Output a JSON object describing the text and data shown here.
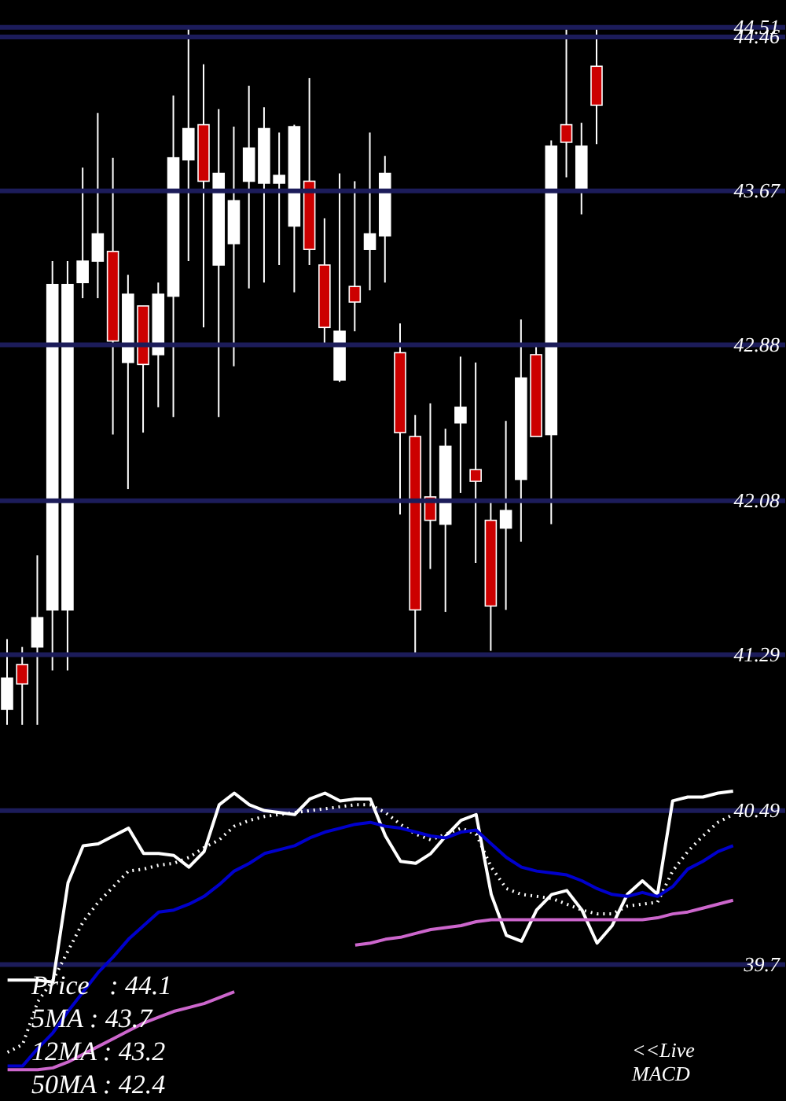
{
  "chart_data": {
    "type": "candlestick",
    "categories": [
      null,
      null,
      null,
      null,
      null,
      null,
      null,
      null,
      null,
      null,
      null,
      null,
      null,
      null,
      null,
      null,
      null,
      null,
      null,
      null,
      null,
      null,
      null,
      null,
      null,
      null,
      null,
      null,
      null,
      null,
      null,
      null,
      null,
      null,
      null,
      null,
      null,
      null,
      null,
      null,
      null,
      null,
      null,
      null,
      null,
      null,
      null,
      null,
      null
    ],
    "ohlc": [
      [
        41.01,
        41.37,
        40.93,
        41.17
      ],
      [
        41.24,
        41.33,
        40.93,
        41.14
      ],
      [
        41.33,
        41.8,
        40.93,
        41.48
      ],
      [
        41.52,
        43.31,
        41.21,
        43.19
      ],
      [
        41.52,
        43.31,
        41.21,
        43.19
      ],
      [
        43.2,
        43.79,
        43.12,
        43.31
      ],
      [
        43.31,
        44.07,
        43.12,
        43.45
      ],
      [
        43.36,
        43.84,
        42.42,
        42.9
      ],
      [
        42.79,
        43.24,
        42.14,
        43.14
      ],
      [
        43.08,
        43.08,
        42.43,
        42.78
      ],
      [
        42.83,
        43.2,
        42.56,
        43.14
      ],
      [
        43.13,
        44.16,
        42.51,
        43.84
      ],
      [
        43.83,
        44.51,
        43.31,
        43.99
      ],
      [
        44.01,
        44.32,
        42.97,
        43.72
      ],
      [
        43.29,
        44.09,
        42.51,
        43.76
      ],
      [
        43.4,
        44.0,
        42.77,
        43.62
      ],
      [
        43.72,
        44.21,
        43.17,
        43.89
      ],
      [
        43.71,
        44.1,
        43.2,
        43.99
      ],
      [
        43.71,
        43.97,
        43.29,
        43.75
      ],
      [
        43.49,
        44.01,
        43.15,
        44.0
      ],
      [
        43.72,
        44.25,
        43.29,
        43.37
      ],
      [
        43.29,
        43.53,
        42.89,
        42.97
      ],
      [
        42.7,
        43.76,
        42.69,
        42.95
      ],
      [
        43.18,
        43.72,
        42.95,
        43.1
      ],
      [
        43.37,
        43.97,
        43.16,
        43.45
      ],
      [
        43.44,
        43.85,
        43.2,
        43.76
      ],
      [
        42.84,
        42.99,
        42.01,
        42.43
      ],
      [
        42.41,
        42.52,
        41.28,
        41.52
      ],
      [
        42.1,
        42.58,
        41.73,
        41.98
      ],
      [
        41.96,
        42.45,
        41.51,
        42.36
      ],
      [
        42.48,
        42.82,
        42.12,
        42.56
      ],
      [
        42.24,
        42.79,
        41.76,
        42.18
      ],
      [
        41.98,
        42.08,
        41.31,
        41.54
      ],
      [
        41.94,
        42.49,
        41.52,
        42.03
      ],
      [
        42.19,
        43.01,
        41.87,
        42.71
      ],
      [
        42.83,
        42.87,
        42.41,
        42.41
      ],
      [
        42.42,
        43.93,
        41.96,
        43.9
      ],
      [
        44.01,
        44.5,
        43.74,
        43.92
      ],
      [
        43.67,
        44.02,
        43.55,
        43.9
      ],
      [
        44.31,
        44.51,
        43.91,
        44.11
      ],
      null,
      null,
      null,
      null,
      null,
      null,
      null,
      null,
      null
    ],
    "colors": [
      "#ffffff",
      "#cc0000",
      "#ffffff",
      "#ffffff",
      "#ffffff",
      "#ffffff",
      "#ffffff",
      "#cc0000",
      "#ffffff",
      "#cc0000",
      "#ffffff",
      "#ffffff",
      "#ffffff",
      "#cc0000",
      "#ffffff",
      "#ffffff",
      "#ffffff",
      "#ffffff",
      "#ffffff",
      "#ffffff",
      "#cc0000",
      "#cc0000",
      "#ffffff",
      "#cc0000",
      "#ffffff",
      "#ffffff",
      "#cc0000",
      "#cc0000",
      "#cc0000",
      "#ffffff",
      "#ffffff",
      "#cc0000",
      "#cc0000",
      "#ffffff",
      "#ffffff",
      "#cc0000",
      "#ffffff",
      "#cc0000",
      "#ffffff",
      "#cc0000",
      null,
      null,
      null,
      null,
      null,
      null,
      null,
      null,
      null
    ],
    "series": [
      {
        "type": "line",
        "color": "#ffffff",
        "line_style": "solid",
        "values": [
          39.62,
          39.62,
          39.62,
          39.61,
          40.12,
          40.31,
          40.32,
          40.36,
          40.4,
          40.27,
          40.27,
          40.26,
          40.2,
          40.28,
          40.52,
          40.58,
          40.52,
          40.49,
          40.48,
          40.47,
          40.55,
          40.58,
          40.54,
          40.55,
          40.55,
          40.36,
          40.23,
          40.22,
          40.27,
          40.36,
          40.44,
          40.47,
          40.06,
          39.85,
          39.82,
          39.98,
          40.06,
          40.08,
          39.98,
          39.81,
          39.9,
          40.06,
          40.13,
          40.06,
          40.54,
          40.56,
          40.56,
          40.58,
          40.59
        ]
      },
      {
        "type": "line",
        "color": "#ffffff",
        "line_style": "dotted",
        "values": [
          39.25,
          39.29,
          39.51,
          39.62,
          39.77,
          39.92,
          40.02,
          40.1,
          40.18,
          40.19,
          40.21,
          40.22,
          40.25,
          40.3,
          40.34,
          40.41,
          40.44,
          40.46,
          40.47,
          40.48,
          40.49,
          40.5,
          40.51,
          40.52,
          40.52,
          40.48,
          40.42,
          40.37,
          40.34,
          40.37,
          40.4,
          40.37,
          40.2,
          40.09,
          40.06,
          40.05,
          40.04,
          40.01,
          39.98,
          39.96,
          39.96,
          40.0,
          40.01,
          40.02,
          40.18,
          40.28,
          40.36,
          40.43,
          40.47
        ]
      },
      {
        "type": "line",
        "color": "#0000cc",
        "line_style": "solid",
        "values": [
          39.18,
          39.18,
          39.27,
          39.35,
          39.46,
          39.56,
          39.66,
          39.74,
          39.83,
          39.9,
          39.97,
          39.98,
          40.01,
          40.05,
          40.11,
          40.18,
          40.22,
          40.27,
          40.29,
          40.31,
          40.35,
          40.38,
          40.4,
          40.42,
          40.43,
          40.41,
          40.4,
          40.38,
          40.36,
          40.35,
          40.38,
          40.39,
          40.32,
          40.25,
          40.2,
          40.18,
          40.17,
          40.16,
          40.13,
          40.09,
          40.06,
          40.05,
          40.07,
          40.05,
          40.1,
          40.19,
          40.23,
          40.28,
          40.31
        ]
      },
      {
        "type": "line",
        "color": "#cc66cc",
        "line_style": "solid",
        "values": [
          39.16,
          39.16,
          39.16,
          39.17,
          39.2,
          39.24,
          39.28,
          39.32,
          39.36,
          39.4,
          39.43,
          39.46,
          39.48,
          39.5,
          39.53,
          39.56,
          null,
          null,
          null,
          null,
          null,
          null,
          null,
          39.8,
          39.81,
          39.83,
          39.84,
          39.86,
          39.88,
          39.89,
          39.9,
          39.92,
          39.93,
          39.93,
          39.93,
          39.93,
          39.93,
          39.93,
          39.93,
          39.93,
          39.93,
          39.93,
          39.93,
          39.94,
          39.96,
          39.97,
          39.99,
          40.01,
          40.03
        ]
      }
    ],
    "ylim": [
      39.0,
      44.65
    ],
    "yticks": [
      39.7,
      40.49,
      41.29,
      42.08,
      42.88,
      43.67,
      44.46,
      44.51
    ],
    "grid": "y",
    "tick_labels": "y",
    "marker": "none",
    "annotations": [
      "Price   : 44.1",
      "5MA : 43.7",
      "12MA : 43.2",
      "50MA : 42.4",
      "<<Live MACD"
    ]
  }
}
